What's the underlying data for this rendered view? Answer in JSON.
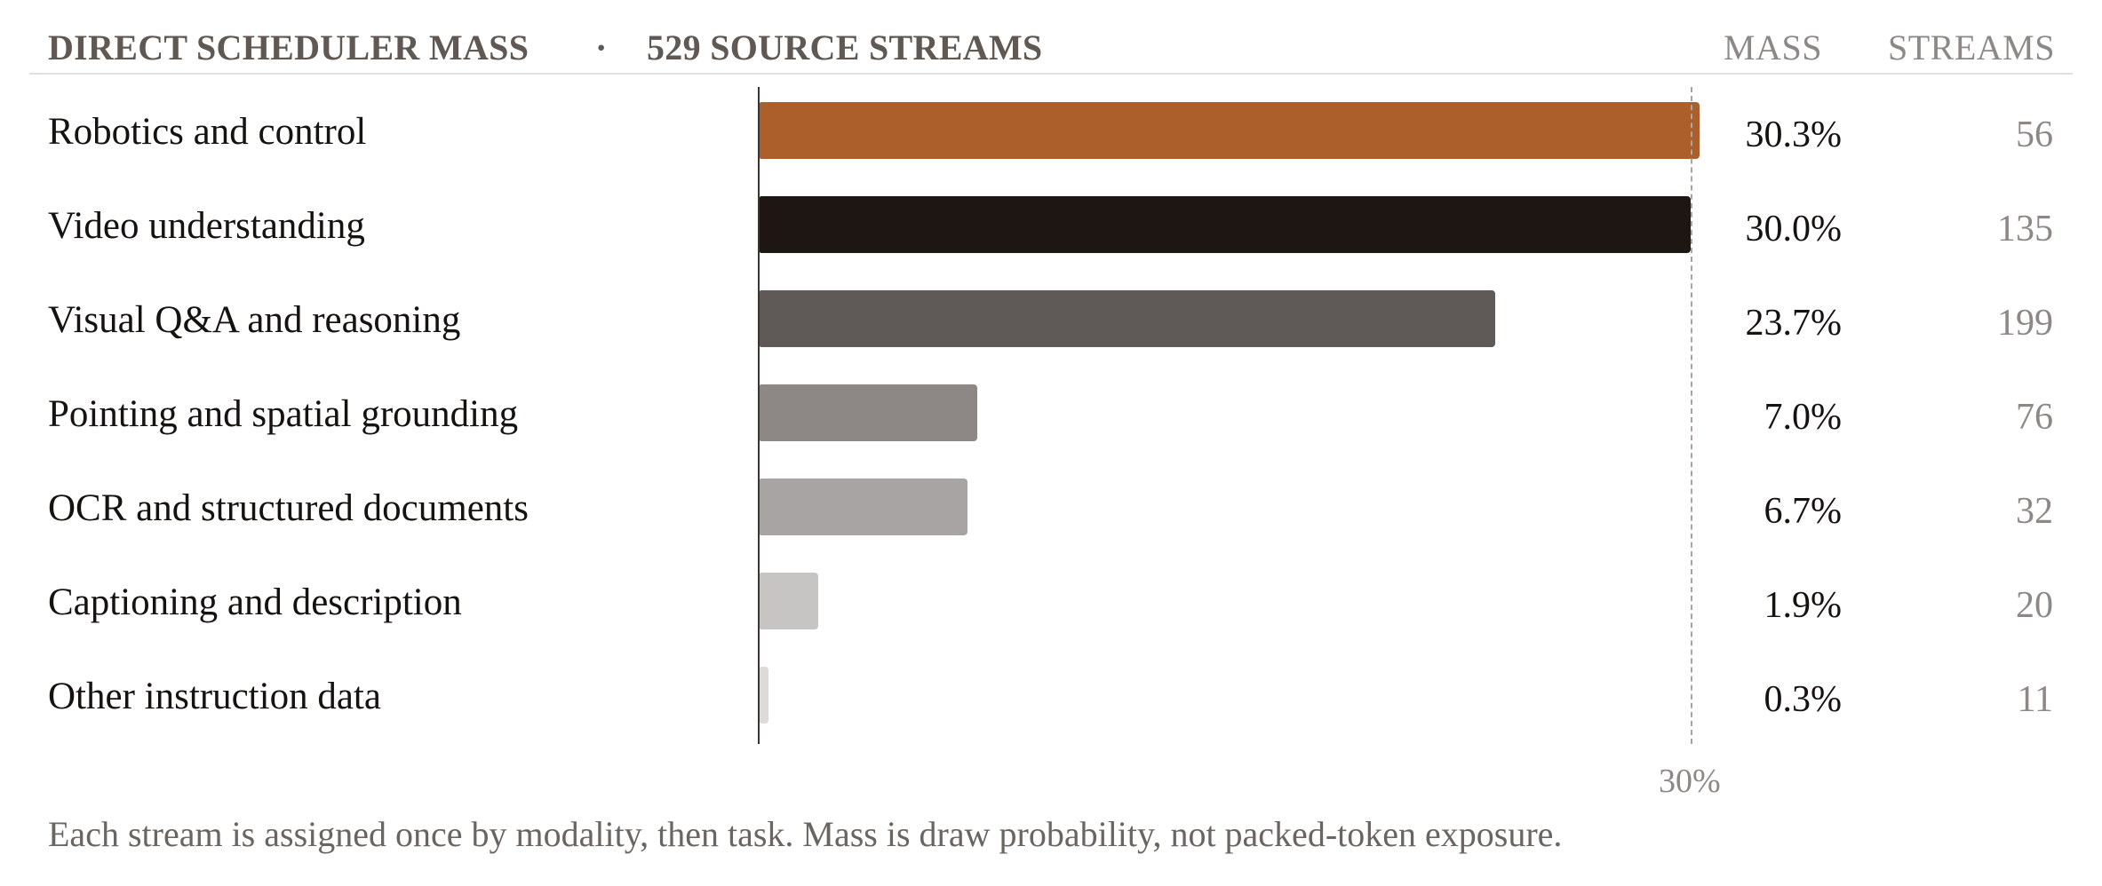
{
  "header": {
    "title": "DIRECT SCHEDULER MASS",
    "separator": "·",
    "subtitle": "529 SOURCE STREAMS",
    "mass_col": "MASS",
    "streams_col": "STREAMS"
  },
  "reference": {
    "label": "30%"
  },
  "note": "Each stream is assigned once by modality, then task. Mass is draw probability, not packed-token exposure.",
  "chart_data": {
    "type": "bar",
    "orientation": "horizontal",
    "title": "DIRECT SCHEDULER MASS",
    "subtitle": "529 SOURCE STREAMS",
    "categories": [
      "Robotics and control",
      "Video understanding",
      "Visual Q&A and reasoning",
      "Pointing and spatial grounding",
      "OCR and structured documents",
      "Captioning and description",
      "Other instruction data"
    ],
    "values": [
      30.3,
      30.0,
      23.7,
      7.0,
      6.7,
      1.9,
      0.3
    ],
    "value_labels": [
      "30.3%",
      "30.0%",
      "23.7%",
      "7.0%",
      "6.7%",
      "1.9%",
      "0.3%"
    ],
    "streams": [
      "56",
      "135",
      "199",
      "76",
      "32",
      "20",
      "11"
    ],
    "colors": [
      "#ac5f2b",
      "#1e1612",
      "#5f5a57",
      "#8d8886",
      "#a7a4a3",
      "#c6c5c4",
      "#dcdbda"
    ],
    "reference_line": 30,
    "xlim": [
      0,
      30.3
    ],
    "grid": false,
    "legend": "none"
  }
}
